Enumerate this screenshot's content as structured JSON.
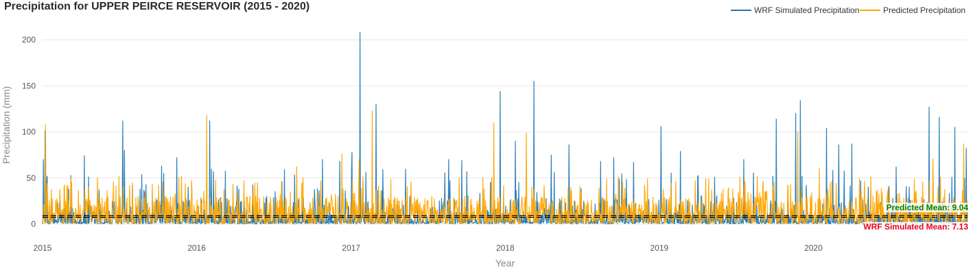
{
  "chart_data": {
    "type": "line",
    "title": "Precipitation for UPPER PEIRCE RESERVOIR (2015 - 2020)",
    "xlabel": "Year",
    "ylabel": "Precipitation (mm)",
    "x_range": [
      "2015-01-01",
      "2020-12-31"
    ],
    "ylim": [
      0,
      215
    ],
    "y_ticks": [
      0,
      50,
      100,
      150,
      200
    ],
    "x_ticks": [
      "2015",
      "2016",
      "2017",
      "2018",
      "2019",
      "2020"
    ],
    "grid": true,
    "legend_position": "top-right",
    "series": [
      {
        "name": "WRF Simulated Precipitation",
        "color": "#1f77b4",
        "mean": 7.13,
        "mean_label": "WRF Simulated Mean: 7.13",
        "mean_color": "#e8001c",
        "peaks": [
          [
            "2015-01-03",
            70
          ],
          [
            "2015-01-07",
            101
          ],
          [
            "2015-01-12",
            52
          ],
          [
            "2015-04-10",
            74
          ],
          [
            "2015-05-15",
            37
          ],
          [
            "2015-07-10",
            112
          ],
          [
            "2015-07-14",
            80
          ],
          [
            "2015-08-20",
            38
          ],
          [
            "2015-10-10",
            63
          ],
          [
            "2015-11-15",
            72
          ],
          [
            "2015-12-12",
            40
          ],
          [
            "2016-02-01",
            112
          ],
          [
            "2016-04-10",
            38
          ],
          [
            "2016-06-15",
            30
          ],
          [
            "2016-09-10",
            28
          ],
          [
            "2016-10-25",
            70
          ],
          [
            "2016-12-05",
            68
          ],
          [
            "2017-01-03",
            78
          ],
          [
            "2017-01-22",
            208
          ],
          [
            "2017-02-05",
            56
          ],
          [
            "2017-03-01",
            130
          ],
          [
            "2017-05-20",
            30
          ],
          [
            "2017-08-20",
            70
          ],
          [
            "2017-09-20",
            69
          ],
          [
            "2017-11-27",
            45
          ],
          [
            "2017-12-20",
            144
          ],
          [
            "2018-01-25",
            90
          ],
          [
            "2018-03-10",
            155
          ],
          [
            "2018-04-20",
            75
          ],
          [
            "2018-06-01",
            86
          ],
          [
            "2018-08-15",
            68
          ],
          [
            "2018-09-15",
            72
          ],
          [
            "2018-11-01",
            67
          ],
          [
            "2019-01-05",
            106
          ],
          [
            "2019-02-20",
            79
          ],
          [
            "2019-04-10",
            30
          ],
          [
            "2019-07-20",
            70
          ],
          [
            "2019-10-05",
            114
          ],
          [
            "2019-11-20",
            120
          ],
          [
            "2019-12-01",
            134
          ],
          [
            "2020-02-01",
            104
          ],
          [
            "2020-03-01",
            86
          ],
          [
            "2020-04-01",
            87
          ],
          [
            "2020-07-15",
            62
          ],
          [
            "2020-10-01",
            127
          ],
          [
            "2020-10-25",
            116
          ],
          [
            "2020-12-01",
            105
          ],
          [
            "2020-12-28",
            82
          ]
        ]
      },
      {
        "name": "Predicted Precipitation",
        "color": "#ffa500",
        "mean": 9.04,
        "mean_label": "Predicted Mean: 9.04",
        "mean_color": "#008000",
        "peaks": [
          [
            "2015-01-08",
            108
          ],
          [
            "2015-04-20",
            40
          ],
          [
            "2015-07-01",
            52
          ],
          [
            "2016-01-25",
            118
          ],
          [
            "2016-08-25",
            62
          ],
          [
            "2016-12-10",
            76
          ],
          [
            "2017-01-20",
            70
          ],
          [
            "2017-02-20",
            123
          ],
          [
            "2017-12-05",
            110
          ],
          [
            "2018-02-20",
            99
          ],
          [
            "2019-11-25",
            100
          ],
          [
            "2020-01-15",
            60
          ],
          [
            "2020-10-10",
            71
          ],
          [
            "2020-12-22",
            87
          ]
        ]
      }
    ]
  }
}
